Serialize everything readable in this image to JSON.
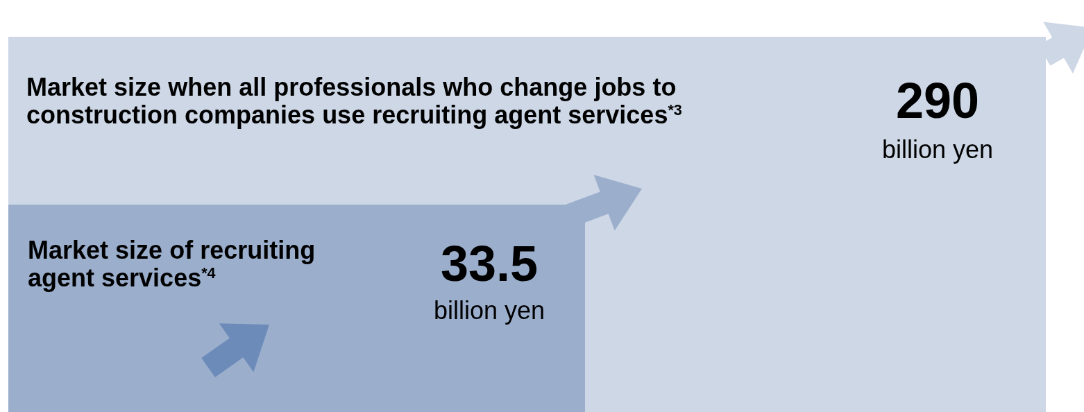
{
  "chart_data": {
    "type": "other",
    "categories": [
      "Market size when all professionals who change jobs to construction companies use recruiting agent services$^{*3}$",
      "Market size of recruiting agent services$^{*4}$"
    ],
    "values": [
      290,
      33.5
    ],
    "data_labels": true,
    "colors": [
      "#cdd7e6",
      "#9bafcd"
    ],
    "annotations": [
      "billion yen",
      "billion yen"
    ]
  }
}
